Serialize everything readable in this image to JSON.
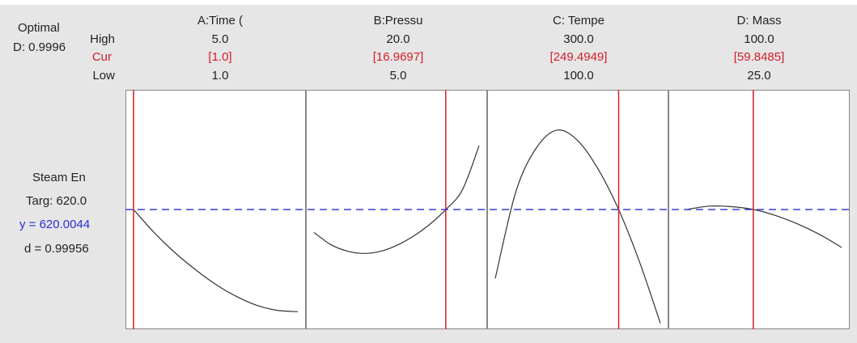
{
  "optimal": {
    "title": "Optimal",
    "d_value": "D: 0.9996"
  },
  "row_labels": {
    "high": "High",
    "cur": "Cur",
    "low": "Low"
  },
  "factors": [
    {
      "name": "A:Time (",
      "high": "5.0",
      "cur": "[1.0]",
      "low": "1.0"
    },
    {
      "name": "B:Pressu",
      "high": "20.0",
      "cur": "[16.9697]",
      "low": "5.0"
    },
    {
      "name": "C: Tempe",
      "high": "300.0",
      "cur": "[249.4949]",
      "low": "100.0"
    },
    {
      "name": "D: Mass",
      "high": "100.0",
      "cur": "[59.8485]",
      "low": "25.0"
    }
  ],
  "response": {
    "name": "Steam En",
    "target": "Targ: 620.0",
    "y": "y = 620.0044",
    "d": "d = 0.99956"
  },
  "colors": {
    "current_line": "#d21f2a",
    "target_line": "#3b3bd0",
    "curve": "#333333",
    "undesirable_band": "#c8c8c8",
    "panel_bg": "#ffffff",
    "panel_border": "#888888"
  },
  "chart_data": {
    "type": "line",
    "title": "",
    "ylabel": "Steam En",
    "target": 620.0,
    "ylim": [
      560,
      680
    ],
    "shaded_band_above": 658,
    "panels": [
      {
        "factor": "A:Time (",
        "xlim": [
          1.0,
          5.0
        ],
        "current_x": 1.0,
        "x": [
          1.0,
          1.5,
          2.0,
          2.5,
          3.0,
          3.5,
          4.0,
          4.5,
          5.0
        ],
        "values": [
          620.0,
          608.5,
          598.5,
          590.0,
          582.5,
          576.5,
          572.0,
          569.5,
          568.8
        ]
      },
      {
        "factor": "B:Pressu",
        "xlim": [
          5.0,
          20.0
        ],
        "current_x": 16.9697,
        "x": [
          5.0,
          6.5,
          8.0,
          9.5,
          11.0,
          12.5,
          14.0,
          15.5,
          17.0,
          18.5,
          20.0
        ],
        "values": [
          608.5,
          602.5,
          599.2,
          598.0,
          599.0,
          602.0,
          606.5,
          612.5,
          620.1,
          630.0,
          652.0
        ]
      },
      {
        "factor": "C: Tempe",
        "xlim": [
          100.0,
          300.0
        ],
        "current_x": 249.4949,
        "x": [
          100.0,
          125.0,
          150.0,
          175.0,
          200.0,
          225.0,
          250.0,
          275.0,
          300.0
        ],
        "values": [
          585.5,
          629.0,
          651.0,
          659.8,
          654.5,
          640.0,
          619.5,
          593.5,
          563.0
        ]
      },
      {
        "factor": "D: Mass",
        "xlim": [
          25.0,
          100.0
        ],
        "current_x": 59.8485,
        "x": [
          30.0,
          40.0,
          50.0,
          60.0,
          70.0,
          80.0,
          90.0,
          100.0
        ],
        "values": [
          620.1,
          621.7,
          621.4,
          620.0,
          617.0,
          612.8,
          607.5,
          601.0
        ]
      }
    ]
  }
}
